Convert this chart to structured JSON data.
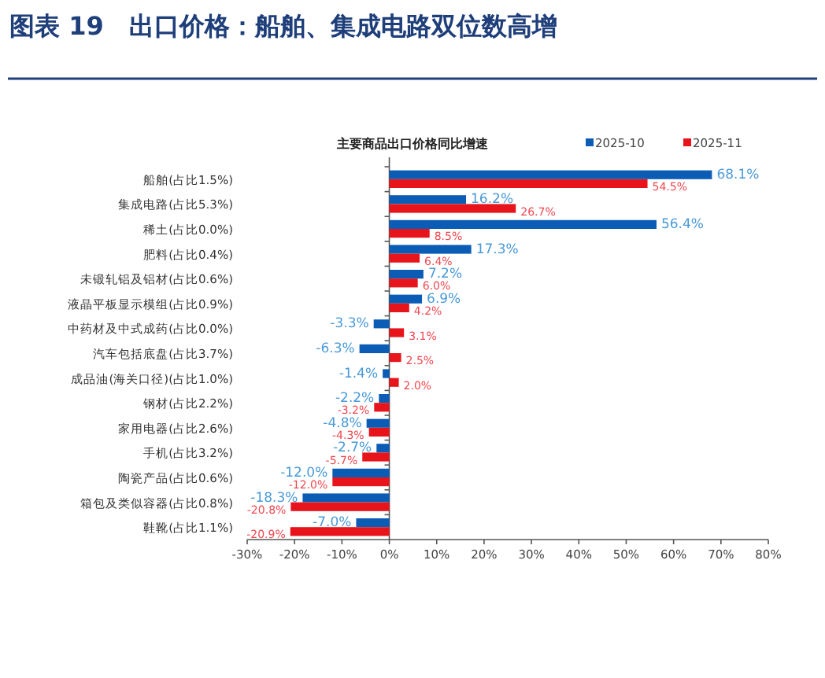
{
  "chart_data": {
    "type": "bar",
    "orientation": "horizontal",
    "title": "图表 19　出口价格：船舶、集成电路双位数高增",
    "subtitle": "主要商品出口价格同比增速",
    "categories": [
      "船舶(占比1.5%)",
      "集成电路(占比5.3%)",
      "稀土(占比0.0%)",
      "肥料(占比0.4%)",
      "未锻轧铝及铝材(占比0.6%)",
      "液晶平板显示模组(占比0.9%)",
      "中药材及中式成药(占比0.0%)",
      "汽车包括底盘(占比3.7%)",
      "成品油(海关口径)(占比1.0%)",
      "钢材(占比2.2%)",
      "家用电器(占比2.6%)",
      "手机(占比3.2%)",
      "陶瓷产品(占比0.6%)",
      "箱包及类似容器(占比0.8%)",
      "鞋靴(占比1.1%)"
    ],
    "series": [
      {
        "name": "2025-10",
        "color": "#0b5cb5",
        "values": [
          68.1,
          16.2,
          56.4,
          17.3,
          7.2,
          6.9,
          -3.3,
          -6.3,
          -1.4,
          -2.2,
          -4.8,
          -2.7,
          -12.0,
          -18.3,
          -7.0
        ],
        "value_labels": [
          "68.1%",
          "16.2%",
          "56.4%",
          "17.3%",
          "7.2%",
          "6.9%",
          "-3.3%",
          "-6.3%",
          "-1.4%",
          "-2.2%",
          "-4.8%",
          "-2.7%",
          "-12.0%",
          "-18.3%",
          "-7.0%"
        ]
      },
      {
        "name": "2025-11",
        "color": "#e8141c",
        "values": [
          54.5,
          26.7,
          8.5,
          6.4,
          6.0,
          4.2,
          3.1,
          2.5,
          2.0,
          -3.2,
          -4.3,
          -5.7,
          -12.0,
          -20.8,
          -20.9
        ],
        "value_labels": [
          "54.5%",
          "26.7%",
          "8.5%",
          "6.4%",
          "6.0%",
          "4.2%",
          "3.1%",
          "2.5%",
          "2.0%",
          "-3.2%",
          "-4.3%",
          "-5.7%",
          "-12.0%",
          "-20.8%",
          "-20.9%"
        ]
      }
    ],
    "xlim": [
      -30,
      80
    ],
    "xticks": [
      {
        "value": -30,
        "label": "-30%"
      },
      {
        "value": -20,
        "label": "-20%"
      },
      {
        "value": -10,
        "label": "-10%"
      },
      {
        "value": 0,
        "label": "0%"
      },
      {
        "value": 10,
        "label": "10%"
      },
      {
        "value": 20,
        "label": "20%"
      },
      {
        "value": 30,
        "label": "30%"
      },
      {
        "value": 40,
        "label": "40%"
      },
      {
        "value": 50,
        "label": "50%"
      },
      {
        "value": 60,
        "label": "60%"
      },
      {
        "value": 70,
        "label": "70%"
      },
      {
        "value": 80,
        "label": "80%"
      }
    ],
    "legend": "top right"
  }
}
